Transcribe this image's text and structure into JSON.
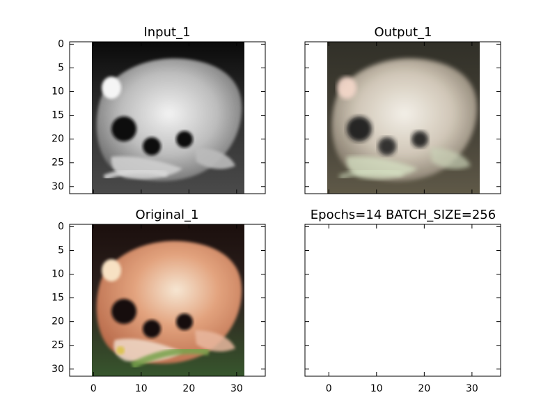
{
  "figure": {
    "background": "#ffffff"
  },
  "chart_data": [
    {
      "type": "image",
      "title": "Input_1",
      "colormap": "grayscale",
      "image_extent": [
        0,
        32
      ],
      "xlim": [
        -5,
        36
      ],
      "ylim": [
        31.5,
        -0.5
      ],
      "x_ticks": [],
      "y_ticks": [
        0,
        5,
        10,
        15,
        20,
        25,
        30
      ],
      "grid": false,
      "content": "frog"
    },
    {
      "type": "image",
      "title": "Output_1",
      "colormap": "rgb",
      "image_extent": [
        0,
        32
      ],
      "xlim": [
        -5,
        36
      ],
      "ylim": [
        31.5,
        -0.5
      ],
      "x_ticks": [],
      "y_ticks": [],
      "grid": false,
      "content": "frog"
    },
    {
      "type": "image",
      "title": "Original_1",
      "colormap": "rgb",
      "image_extent": [
        0,
        32
      ],
      "xlim": [
        -5,
        36
      ],
      "ylim": [
        31.5,
        -0.5
      ],
      "x_ticks": [
        0,
        10,
        20,
        30
      ],
      "y_ticks": [
        0,
        5,
        10,
        15,
        20,
        25,
        30
      ],
      "grid": false,
      "content": "frog"
    },
    {
      "type": "image",
      "title": "Epochs=14 BATCH_SIZE=256",
      "colormap": "none",
      "image_extent": null,
      "xlim": [
        -5,
        36
      ],
      "ylim": [
        31.5,
        -0.5
      ],
      "x_ticks": [
        0,
        10,
        20,
        30
      ],
      "y_ticks": [],
      "grid": false,
      "content": "empty"
    }
  ]
}
